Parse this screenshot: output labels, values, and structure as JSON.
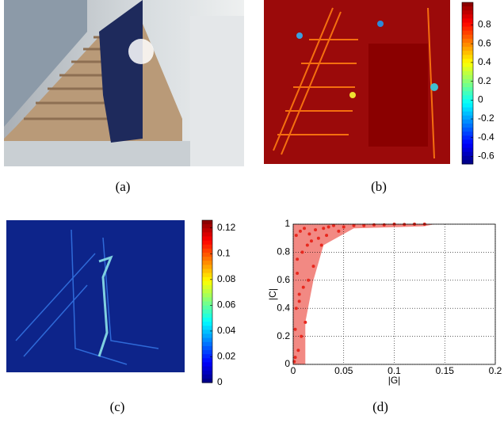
{
  "panels": {
    "a": {
      "caption": "(a)"
    },
    "b": {
      "caption": "(b)",
      "colorbar": {
        "clim": [
          -0.68,
          1.04
        ],
        "ticks": [
          0.8,
          0.6,
          0.4,
          0.2,
          0,
          -0.2,
          -0.4,
          -0.6
        ]
      }
    },
    "c": {
      "caption": "(c)",
      "colorbar": {
        "clim": [
          0,
          0.126
        ],
        "ticks": [
          0.12,
          0.1,
          0.08,
          0.06,
          0.04,
          0.02,
          0
        ]
      }
    },
    "d": {
      "caption": "(d)",
      "chart": {
        "type": "scatter",
        "x_label": "|G|",
        "y_label": "|C|",
        "xlim": [
          0,
          0.2
        ],
        "ylim": [
          0,
          1
        ],
        "xticks": [
          0,
          0.05,
          0.1,
          0.15,
          0.2
        ],
        "yticks": [
          0,
          0.2,
          0.4,
          0.6,
          0.8,
          1
        ],
        "grid": true,
        "color": "#e8281e",
        "x": [
          0.002,
          0.005,
          0.008,
          0.012,
          0.003,
          0.006,
          0.01,
          0.015,
          0.02,
          0.004,
          0.009,
          0.014,
          0.018,
          0.025,
          0.003,
          0.007,
          0.011,
          0.016,
          0.022,
          0.03,
          0.035,
          0.04,
          0.05,
          0.06,
          0.07,
          0.08,
          0.09,
          0.1,
          0.11,
          0.12,
          0.13,
          0.045,
          0.028,
          0.033,
          0.001,
          0.002,
          0.004,
          0.006
        ],
        "y": [
          0.05,
          0.1,
          0.2,
          0.3,
          0.4,
          0.5,
          0.55,
          0.6,
          0.7,
          0.75,
          0.8,
          0.85,
          0.88,
          0.9,
          0.92,
          0.95,
          0.97,
          0.93,
          0.96,
          0.97,
          0.98,
          0.99,
          0.98,
          0.99,
          0.99,
          0.995,
          0.995,
          1.0,
          0.998,
          1.0,
          1.0,
          0.95,
          0.85,
          0.92,
          0.02,
          0.25,
          0.65,
          0.45
        ]
      }
    }
  }
}
